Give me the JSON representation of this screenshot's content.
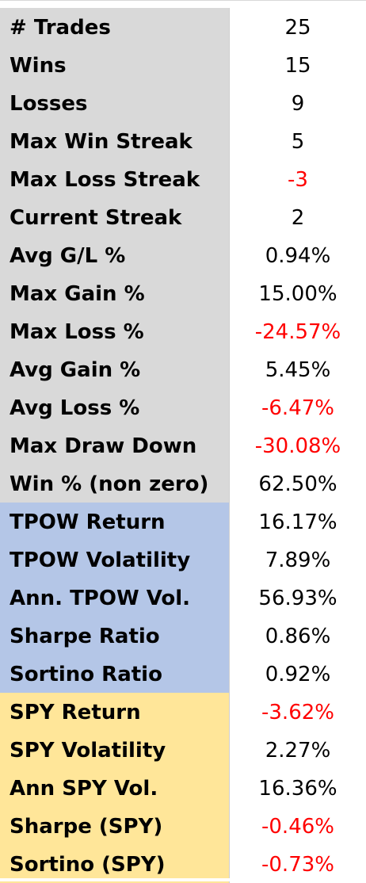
{
  "colors": {
    "grey_fill": "#d9d9d9",
    "blue_fill": "#b4c6e7",
    "yellow_fill": "#ffe699",
    "negative_text": "#ff0000",
    "text": "#000000"
  },
  "rows": [
    {
      "label": "# Trades",
      "value": "25",
      "group": "grey",
      "negative": false
    },
    {
      "label": "Wins",
      "value": "15",
      "group": "grey",
      "negative": false
    },
    {
      "label": "Losses",
      "value": "9",
      "group": "grey",
      "negative": false
    },
    {
      "label": "Max Win Streak",
      "value": "5",
      "group": "grey",
      "negative": false
    },
    {
      "label": "Max Loss Streak",
      "value": "-3",
      "group": "grey",
      "negative": true
    },
    {
      "label": "Current Streak",
      "value": "2",
      "group": "grey",
      "negative": false
    },
    {
      "label": "Avg G/L %",
      "value": "0.94%",
      "group": "grey",
      "negative": false
    },
    {
      "label": "Max Gain %",
      "value": "15.00%",
      "group": "grey",
      "negative": false
    },
    {
      "label": "Max Loss %",
      "value": "-24.57%",
      "group": "grey",
      "negative": true
    },
    {
      "label": "Avg Gain %",
      "value": "5.45%",
      "group": "grey",
      "negative": false
    },
    {
      "label": "Avg Loss %",
      "value": "-6.47%",
      "group": "grey",
      "negative": true
    },
    {
      "label": "Max Draw Down",
      "value": "-30.08%",
      "group": "grey",
      "negative": true
    },
    {
      "label": "Win % (non zero)",
      "value": "62.50%",
      "group": "grey",
      "negative": false
    },
    {
      "label": "TPOW Return",
      "value": "16.17%",
      "group": "blue",
      "negative": false
    },
    {
      "label": "TPOW Volatility",
      "value": "7.89%",
      "group": "blue",
      "negative": false
    },
    {
      "label": "Ann. TPOW Vol.",
      "value": "56.93%",
      "group": "blue",
      "negative": false
    },
    {
      "label": "Sharpe Ratio",
      "value": "0.86%",
      "group": "blue",
      "negative": false
    },
    {
      "label": "Sortino Ratio",
      "value": "0.92%",
      "group": "blue",
      "negative": false
    },
    {
      "label": "SPY Return",
      "value": "-3.62%",
      "group": "yellow",
      "negative": true
    },
    {
      "label": "SPY Volatility",
      "value": "2.27%",
      "group": "yellow",
      "negative": false
    },
    {
      "label": "Ann SPY Vol.",
      "value": "16.36%",
      "group": "yellow",
      "negative": false
    },
    {
      "label": "Sharpe (SPY)",
      "value": "-0.46%",
      "group": "yellow",
      "negative": true
    },
    {
      "label": "Sortino (SPY)",
      "value": "-0.73%",
      "group": "yellow",
      "negative": true
    }
  ]
}
